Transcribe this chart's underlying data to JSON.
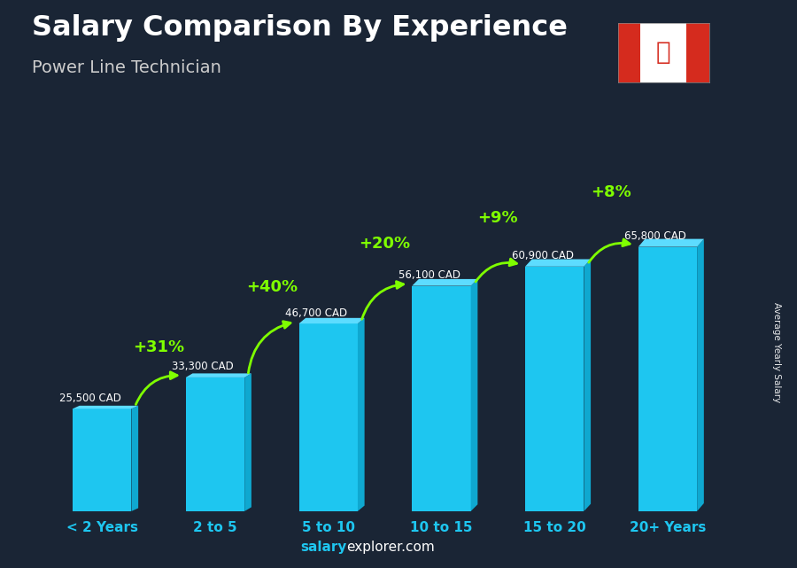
{
  "categories": [
    "< 2 Years",
    "2 to 5",
    "5 to 10",
    "10 to 15",
    "15 to 20",
    "20+ Years"
  ],
  "values": [
    25500,
    33300,
    46700,
    56100,
    60900,
    65800
  ],
  "salary_labels": [
    "25,500 CAD",
    "33,300 CAD",
    "46,700 CAD",
    "56,100 CAD",
    "60,900 CAD",
    "65,800 CAD"
  ],
  "pct_changes": [
    "+31%",
    "+40%",
    "+20%",
    "+9%",
    "+8%"
  ],
  "bar_color": "#1EC6F0",
  "bar_color_dark": "#0FA8D0",
  "bar_color_top": "#5DDCFF",
  "title_line1": "Salary Comparison By Experience",
  "title_line2": "Power Line Technician",
  "ylabel": "Average Yearly Salary",
  "footer_bold": "salary",
  "footer_regular": "explorer.com",
  "bg_color": "#1a2535",
  "pct_color": "#7FFF00",
  "salary_label_color": "#ffffff",
  "ylim": [
    0,
    82000
  ],
  "figsize": [
    9.0,
    6.41
  ],
  "bar_width": 0.52,
  "arrow_color": "#7FFF00"
}
